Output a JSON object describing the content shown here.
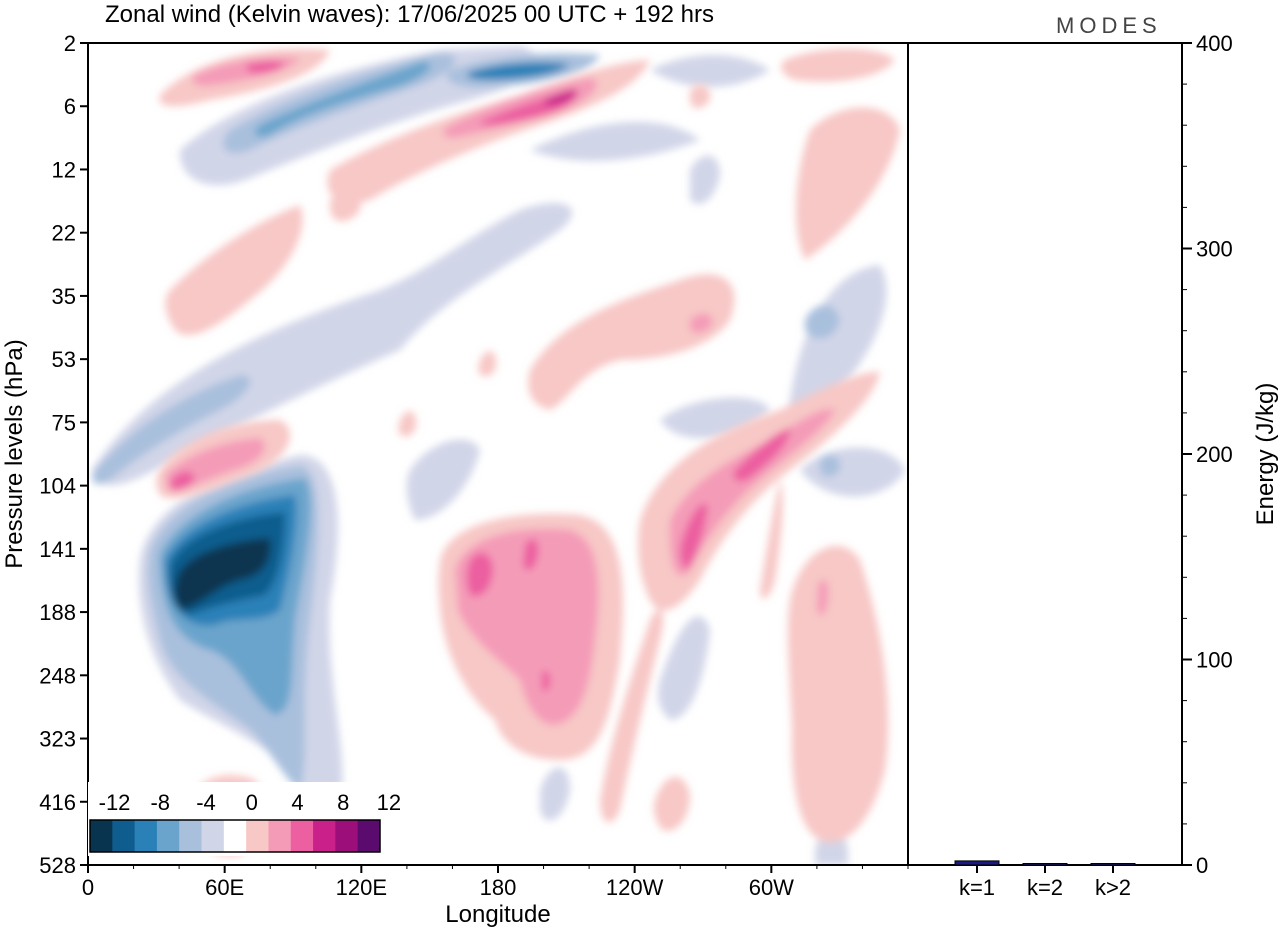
{
  "header": {
    "title": "Zonal wind (Kelvin waves):  17/06/2025  00 UTC  + 192 hrs",
    "logo": "MODES"
  },
  "colors": {
    "neg": [
      "#08344f",
      "#0e5d8e",
      "#2a81b8",
      "#6aa4cc",
      "#a9c0dd",
      "#d1d5e8",
      "#ffffff"
    ],
    "pos": [
      "#ffffff",
      "#f7c8c6",
      "#f49bb8",
      "#ec5fa0",
      "#c9208a",
      "#9c0e7a",
      "#5b0a6e"
    ],
    "bar": "#1a1a80"
  },
  "chart_data": [
    {
      "type": "heatmap",
      "title": "Zonal wind (Kelvin waves):  17/06/2025  00 UTC  + 192 hrs",
      "xlabel": "Longitude",
      "ylabel": "Pressure levels (hPa)",
      "x_ticks": [
        "0",
        "60E",
        "120E",
        "180",
        "120W",
        "60W"
      ],
      "x_tick_values": [
        0,
        60,
        120,
        180,
        240,
        300
      ],
      "xlim": [
        0,
        360
      ],
      "y_ticks": [
        "2",
        "6",
        "12",
        "22",
        "35",
        "53",
        "75",
        "104",
        "141",
        "188",
        "248",
        "323",
        "416",
        "528"
      ],
      "y_scale": "log (top = 2 hPa, bottom = 528 hPa)",
      "colorbar": {
        "labels": [
          "-12",
          "-8",
          "-4",
          "0",
          "4",
          "8",
          "12"
        ],
        "levels": [
          -14,
          -12,
          -10,
          -8,
          -6,
          -4,
          -2,
          0,
          2,
          4,
          6,
          8,
          10,
          12,
          14
        ]
      },
      "features": [
        {
          "lon": 38,
          "level": 142,
          "value": -14
        },
        {
          "lon": 84,
          "level": 128,
          "value": -13
        },
        {
          "lon": 110,
          "level": 5,
          "value": -9
        },
        {
          "lon": 170,
          "level": 3.5,
          "value": -9
        },
        {
          "lon": 212,
          "level": 6,
          "value": 11
        },
        {
          "lon": 76,
          "level": 3,
          "value": 9
        },
        {
          "lon": 188,
          "level": 150,
          "value": 8
        },
        {
          "lon": 262,
          "level": 115,
          "value": 9
        },
        {
          "lon": 50,
          "level": 98,
          "value": 7
        },
        {
          "lon": 252,
          "level": 34,
          "value": 5
        },
        {
          "lon": 322,
          "level": 160,
          "value": 5
        }
      ]
    },
    {
      "type": "bar",
      "categories": [
        "k=1",
        "k=2",
        "k>2"
      ],
      "values": [
        2,
        0.5,
        0.5
      ],
      "ylabel": "Energy (J/kg)",
      "ylim": [
        0,
        400
      ],
      "y_ticks": [
        "0",
        "100",
        "200",
        "300",
        "400"
      ]
    }
  ]
}
